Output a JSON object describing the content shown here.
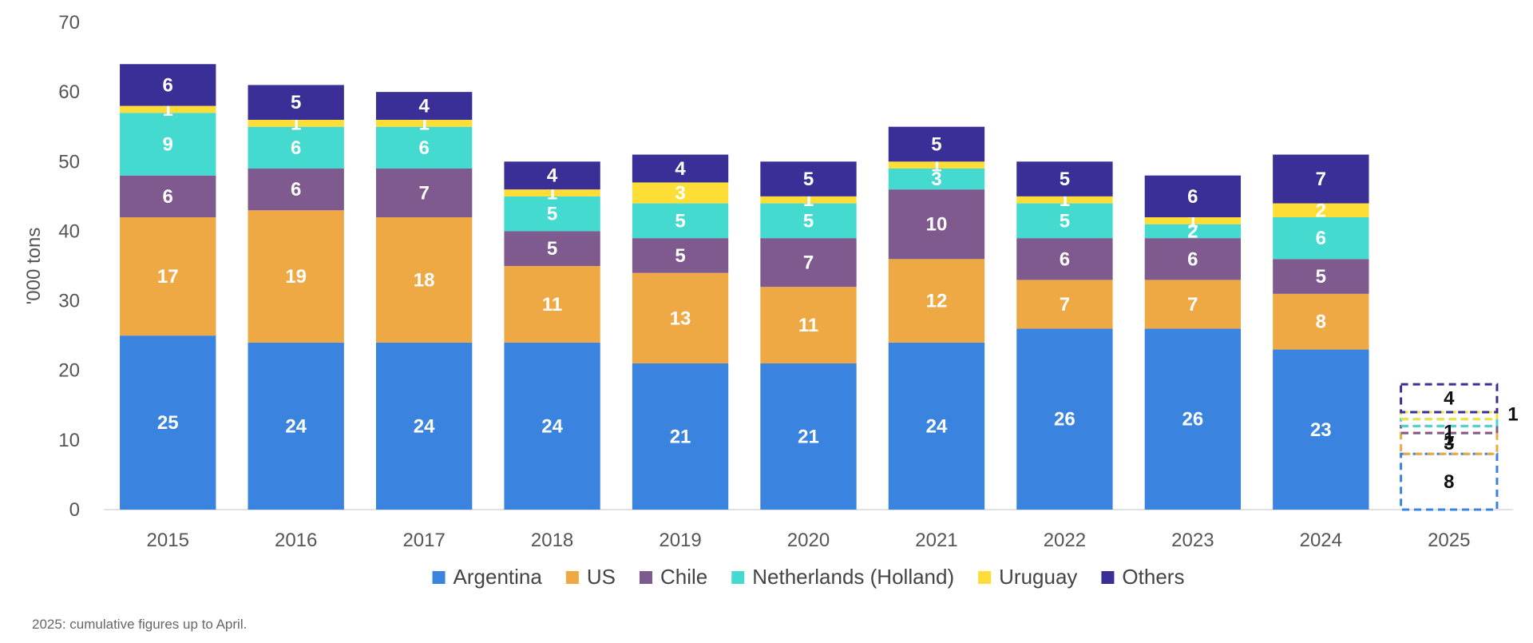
{
  "chart_data": {
    "type": "bar",
    "stacked": true,
    "title": "",
    "xlabel": "",
    "ylabel": "'000 tons",
    "ylim": [
      0,
      70
    ],
    "yticks": [
      "0",
      "10",
      "20",
      "30",
      "40",
      "50",
      "60",
      "70"
    ],
    "categories": [
      "2015",
      "2016",
      "2017",
      "2018",
      "2019",
      "2020",
      "2021",
      "2022",
      "2023",
      "2024",
      "2025"
    ],
    "partial_categories": [
      "2025"
    ],
    "legend_position": "bottom",
    "grid": false,
    "series": [
      {
        "name": "Argentina",
        "color": "#3A84E0",
        "values": [
          25,
          24,
          24,
          24,
          21,
          21,
          24,
          26,
          26,
          23,
          8
        ]
      },
      {
        "name": "US",
        "color": "#EFA944",
        "values": [
          17,
          19,
          18,
          11,
          13,
          11,
          12,
          7,
          7,
          8,
          3
        ]
      },
      {
        "name": "Chile",
        "color": "#7E5A8E",
        "values": [
          6,
          6,
          7,
          5,
          5,
          7,
          10,
          6,
          6,
          5,
          1
        ]
      },
      {
        "name": "Netherlands (Holland)",
        "color": "#44DAD0",
        "values": [
          9,
          6,
          6,
          5,
          5,
          5,
          3,
          5,
          2,
          6,
          1
        ]
      },
      {
        "name": "Uruguay",
        "color": "#FDDD36",
        "values": [
          1,
          1,
          1,
          1,
          3,
          1,
          1,
          1,
          1,
          2,
          1
        ]
      },
      {
        "name": "Others",
        "color": "#3A2F96",
        "values": [
          6,
          5,
          4,
          4,
          4,
          5,
          5,
          5,
          6,
          7,
          4
        ]
      }
    ]
  },
  "footnote": "2025: cumulative figures up to April."
}
